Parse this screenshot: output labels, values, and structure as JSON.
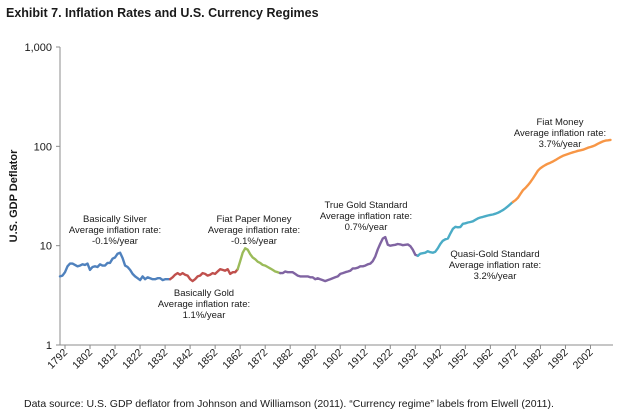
{
  "title": "Exhibit 7. Inflation Rates and U.S. Currency Regimes",
  "source": "Data source: U.S. GDP deflator from Johnson and Williamson (2011). “Currency regime” labels from Elwell (2011).",
  "chart_data": {
    "type": "line",
    "title": "Exhibit 7. Inflation Rates and U.S. Currency Regimes",
    "xlabel": "",
    "ylabel": "U.S. GDP Deflator",
    "yscale": "log",
    "ylim": [
      1,
      1000
    ],
    "xlim": [
      1790,
      2011
    ],
    "y_ticks": [
      1,
      10,
      100,
      1000
    ],
    "y_tick_labels": [
      "1",
      "10",
      "100",
      "1,000"
    ],
    "x_ticks": [
      1792,
      1802,
      1812,
      1822,
      1832,
      1842,
      1852,
      1862,
      1872,
      1882,
      1892,
      1902,
      1912,
      1922,
      1932,
      1942,
      1952,
      1962,
      1972,
      1982,
      1992,
      2002
    ],
    "series": [
      {
        "name": "Basically Silver",
        "color": "#4f81bd",
        "points": [
          [
            1790,
            4.9
          ],
          [
            1791,
            5.0
          ],
          [
            1792,
            5.4
          ],
          [
            1793,
            6.2
          ],
          [
            1794,
            6.6
          ],
          [
            1795,
            6.6
          ],
          [
            1796,
            6.4
          ],
          [
            1797,
            6.2
          ],
          [
            1798,
            6.3
          ],
          [
            1799,
            6.5
          ],
          [
            1800,
            6.4
          ],
          [
            1801,
            6.6
          ],
          [
            1802,
            5.7
          ],
          [
            1803,
            6.1
          ],
          [
            1804,
            6.2
          ],
          [
            1805,
            6.1
          ],
          [
            1806,
            6.5
          ],
          [
            1807,
            6.3
          ],
          [
            1808,
            6.3
          ],
          [
            1809,
            6.7
          ],
          [
            1810,
            6.7
          ],
          [
            1811,
            7.4
          ],
          [
            1812,
            7.6
          ],
          [
            1813,
            8.3
          ],
          [
            1814,
            8.5
          ],
          [
            1815,
            7.5
          ],
          [
            1816,
            6.3
          ],
          [
            1817,
            6.1
          ],
          [
            1818,
            5.7
          ],
          [
            1819,
            5.2
          ],
          [
            1820,
            4.9
          ],
          [
            1821,
            4.7
          ],
          [
            1822,
            4.5
          ],
          [
            1823,
            4.9
          ],
          [
            1824,
            4.6
          ],
          [
            1825,
            4.8
          ],
          [
            1826,
            4.7
          ],
          [
            1827,
            4.6
          ],
          [
            1828,
            4.6
          ],
          [
            1829,
            4.7
          ],
          [
            1830,
            4.7
          ],
          [
            1831,
            4.5
          ],
          [
            1832,
            4.6
          ],
          [
            1833,
            4.6
          ],
          [
            1834,
            4.6
          ]
        ]
      },
      {
        "name": "Basically Gold",
        "color": "#c0504d",
        "points": [
          [
            1834,
            4.6
          ],
          [
            1835,
            4.8
          ],
          [
            1836,
            5.1
          ],
          [
            1837,
            5.3
          ],
          [
            1838,
            5.1
          ],
          [
            1839,
            5.3
          ],
          [
            1840,
            5.1
          ],
          [
            1841,
            5.0
          ],
          [
            1842,
            4.6
          ],
          [
            1843,
            4.4
          ],
          [
            1844,
            4.6
          ],
          [
            1845,
            4.9
          ],
          [
            1846,
            5.0
          ],
          [
            1847,
            5.3
          ],
          [
            1848,
            5.2
          ],
          [
            1849,
            5.0
          ],
          [
            1850,
            5.1
          ],
          [
            1851,
            5.3
          ],
          [
            1852,
            5.2
          ],
          [
            1853,
            5.5
          ],
          [
            1854,
            5.8
          ],
          [
            1855,
            5.7
          ],
          [
            1856,
            5.6
          ],
          [
            1857,
            5.8
          ],
          [
            1858,
            5.2
          ],
          [
            1859,
            5.4
          ],
          [
            1860,
            5.4
          ],
          [
            1861,
            5.8
          ]
        ]
      },
      {
        "name": "Fiat Paper Money",
        "color": "#9bbb59",
        "points": [
          [
            1861,
            5.8
          ],
          [
            1862,
            7.0
          ],
          [
            1863,
            8.5
          ],
          [
            1864,
            9.4
          ],
          [
            1865,
            9.1
          ],
          [
            1866,
            8.2
          ],
          [
            1867,
            7.6
          ],
          [
            1868,
            7.3
          ],
          [
            1869,
            6.9
          ],
          [
            1870,
            6.7
          ],
          [
            1871,
            6.4
          ],
          [
            1872,
            6.3
          ],
          [
            1873,
            6.1
          ],
          [
            1874,
            5.9
          ],
          [
            1875,
            5.7
          ],
          [
            1876,
            5.5
          ],
          [
            1877,
            5.4
          ],
          [
            1878,
            5.3
          ]
        ]
      },
      {
        "name": "True Gold Standard",
        "color": "#8064a2",
        "points": [
          [
            1878,
            5.3
          ],
          [
            1879,
            5.3
          ],
          [
            1880,
            5.5
          ],
          [
            1881,
            5.4
          ],
          [
            1882,
            5.4
          ],
          [
            1883,
            5.4
          ],
          [
            1884,
            5.2
          ],
          [
            1885,
            5.0
          ],
          [
            1886,
            4.9
          ],
          [
            1887,
            4.9
          ],
          [
            1888,
            4.9
          ],
          [
            1889,
            4.9
          ],
          [
            1890,
            4.8
          ],
          [
            1891,
            4.8
          ],
          [
            1892,
            4.6
          ],
          [
            1893,
            4.7
          ],
          [
            1894,
            4.6
          ],
          [
            1895,
            4.5
          ],
          [
            1896,
            4.4
          ],
          [
            1897,
            4.5
          ],
          [
            1898,
            4.6
          ],
          [
            1899,
            4.7
          ],
          [
            1900,
            4.8
          ],
          [
            1901,
            4.9
          ],
          [
            1902,
            5.2
          ],
          [
            1903,
            5.3
          ],
          [
            1904,
            5.4
          ],
          [
            1905,
            5.5
          ],
          [
            1906,
            5.6
          ],
          [
            1907,
            5.9
          ],
          [
            1908,
            5.9
          ],
          [
            1909,
            6.0
          ],
          [
            1910,
            6.2
          ],
          [
            1911,
            6.2
          ],
          [
            1912,
            6.3
          ],
          [
            1913,
            6.5
          ],
          [
            1914,
            6.6
          ],
          [
            1915,
            7.0
          ],
          [
            1916,
            7.8
          ],
          [
            1917,
            9.2
          ],
          [
            1918,
            10.5
          ],
          [
            1919,
            11.8
          ],
          [
            1920,
            12.2
          ],
          [
            1921,
            10.2
          ],
          [
            1922,
            10.0
          ],
          [
            1923,
            10.1
          ],
          [
            1924,
            10.2
          ],
          [
            1925,
            10.4
          ],
          [
            1926,
            10.3
          ],
          [
            1927,
            10.1
          ],
          [
            1928,
            10.2
          ],
          [
            1929,
            10.3
          ],
          [
            1930,
            9.9
          ],
          [
            1931,
            9.1
          ],
          [
            1932,
            8.1
          ],
          [
            1933,
            7.9
          ]
        ]
      },
      {
        "name": "Quasi-Gold Standard",
        "color": "#4bacc6",
        "points": [
          [
            1933,
            7.9
          ],
          [
            1934,
            8.3
          ],
          [
            1935,
            8.4
          ],
          [
            1936,
            8.5
          ],
          [
            1937,
            8.8
          ],
          [
            1938,
            8.6
          ],
          [
            1939,
            8.5
          ],
          [
            1940,
            8.7
          ],
          [
            1941,
            9.4
          ],
          [
            1942,
            10.4
          ],
          [
            1943,
            11.2
          ],
          [
            1944,
            11.6
          ],
          [
            1945,
            11.8
          ],
          [
            1946,
            13.3
          ],
          [
            1947,
            14.8
          ],
          [
            1948,
            15.5
          ],
          [
            1949,
            15.3
          ],
          [
            1950,
            15.4
          ],
          [
            1951,
            16.6
          ],
          [
            1952,
            16.8
          ],
          [
            1953,
            17.1
          ],
          [
            1954,
            17.3
          ],
          [
            1955,
            17.6
          ],
          [
            1956,
            18.2
          ],
          [
            1957,
            18.8
          ],
          [
            1958,
            19.2
          ],
          [
            1959,
            19.5
          ],
          [
            1960,
            19.8
          ],
          [
            1961,
            20.1
          ],
          [
            1962,
            20.4
          ],
          [
            1963,
            20.6
          ],
          [
            1964,
            21.0
          ],
          [
            1965,
            21.4
          ],
          [
            1966,
            22.1
          ],
          [
            1967,
            22.8
          ],
          [
            1968,
            23.8
          ],
          [
            1969,
            24.9
          ],
          [
            1970,
            26.2
          ],
          [
            1971,
            27.5
          ]
        ]
      },
      {
        "name": "Fiat Money",
        "color": "#f79646",
        "points": [
          [
            1971,
            27.5
          ],
          [
            1972,
            28.7
          ],
          [
            1973,
            30.3
          ],
          [
            1974,
            33.1
          ],
          [
            1975,
            36.1
          ],
          [
            1976,
            38.1
          ],
          [
            1977,
            40.6
          ],
          [
            1978,
            43.6
          ],
          [
            1979,
            47.4
          ],
          [
            1980,
            51.9
          ],
          [
            1981,
            56.8
          ],
          [
            1982,
            60.3
          ],
          [
            1983,
            62.6
          ],
          [
            1984,
            64.9
          ],
          [
            1985,
            66.9
          ],
          [
            1986,
            68.5
          ],
          [
            1987,
            70.3
          ],
          [
            1988,
            72.6
          ],
          [
            1989,
            75.4
          ],
          [
            1990,
            78.0
          ],
          [
            1991,
            80.3
          ],
          [
            1992,
            82.0
          ],
          [
            1993,
            83.8
          ],
          [
            1994,
            85.4
          ],
          [
            1995,
            87.0
          ],
          [
            1996,
            88.6
          ],
          [
            1997,
            90.2
          ],
          [
            1998,
            91.2
          ],
          [
            1999,
            92.5
          ],
          [
            2000,
            94.6
          ],
          [
            2001,
            96.9
          ],
          [
            2002,
            98.4
          ],
          [
            2003,
            100.4
          ],
          [
            2004,
            103.0
          ],
          [
            2005,
            106.2
          ],
          [
            2006,
            109.4
          ],
          [
            2007,
            112.0
          ],
          [
            2008,
            114.2
          ],
          [
            2009,
            115.0
          ],
          [
            2010,
            116.2
          ]
        ]
      }
    ],
    "annotations": [
      {
        "lines": [
          "Basically Silver",
          "Average inflation rate:",
          "-0.1%/year"
        ]
      },
      {
        "lines": [
          "Basically Gold",
          "Average inflation rate:",
          "1.1%/year"
        ]
      },
      {
        "lines": [
          "Fiat Paper Money",
          "Average inflation rate:",
          "-0.1%/year"
        ]
      },
      {
        "lines": [
          "True Gold Standard",
          "Average inflation rate:",
          "0.7%/year"
        ]
      },
      {
        "lines": [
          "Quasi-Gold Standard",
          "Average inflation rate:",
          "3.2%/year"
        ]
      },
      {
        "lines": [
          "Fiat Money",
          "Average inflation rate:",
          "3.7%/year"
        ]
      }
    ]
  }
}
